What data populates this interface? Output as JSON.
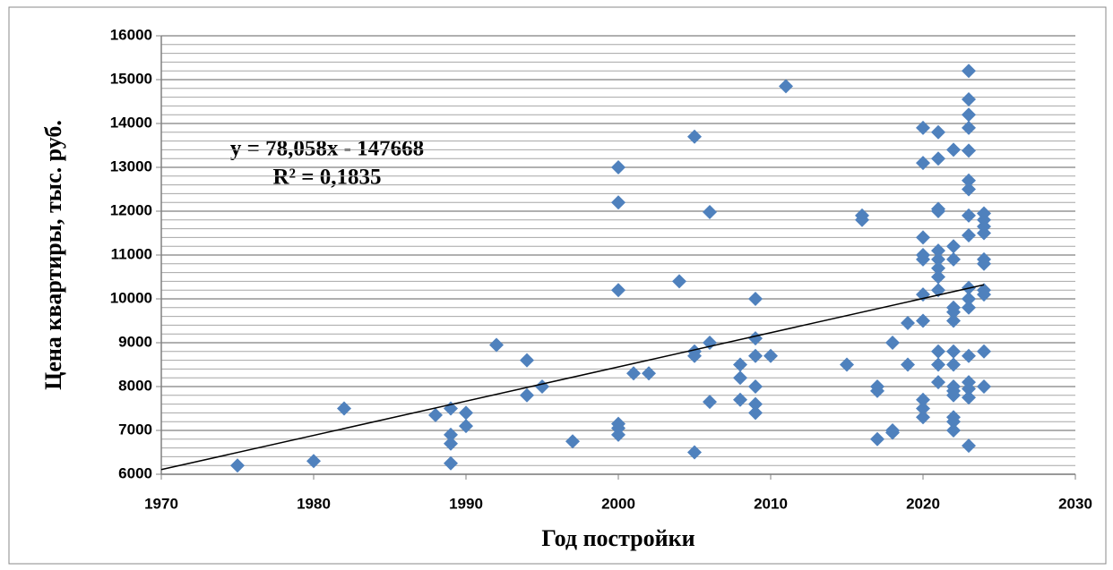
{
  "chart_data": {
    "type": "scatter",
    "xlabel": "Год постройки",
    "ylabel": "Цена квартиры, тыс. руб.",
    "color": "#4f81bd",
    "xlim": [
      1970,
      2030
    ],
    "xticks": [
      1970,
      1980,
      1990,
      2000,
      2010,
      2020,
      2030
    ],
    "ylim": [
      6000,
      16000
    ],
    "yticks": [
      6000,
      7000,
      8000,
      9000,
      10000,
      11000,
      12000,
      13000,
      14000,
      15000,
      16000
    ],
    "grid": true,
    "y_minor_step": 200,
    "trendline": {
      "slope": 78.058,
      "intercept": -147668,
      "x": [
        1970,
        2024
      ],
      "equation": "y = 78,058x - 147668",
      "r2": "R² = 0,1835"
    },
    "x": [
      1975,
      1980,
      1982,
      1988,
      1989,
      1989,
      1989,
      1989,
      1990,
      1990,
      1992,
      1994,
      1994,
      1995,
      1997,
      2000,
      2000,
      2000,
      2000,
      2000,
      2000,
      2001,
      2002,
      2004,
      2005,
      2005,
      2005,
      2005,
      2006,
      2006,
      2006,
      2008,
      2008,
      2008,
      2009,
      2009,
      2009,
      2009,
      2009,
      2009,
      2010,
      2011,
      2015,
      2016,
      2016,
      2017,
      2017,
      2017,
      2018,
      2018,
      2018,
      2019,
      2019,
      2020,
      2020,
      2020,
      2020,
      2020,
      2020,
      2020,
      2020,
      2020,
      2020,
      2021,
      2021,
      2021,
      2021,
      2021,
      2021,
      2021,
      2021,
      2021,
      2021,
      2021,
      2021,
      2022,
      2022,
      2022,
      2022,
      2022,
      2022,
      2022,
      2022,
      2022,
      2022,
      2022,
      2022,
      2022,
      2022,
      2023,
      2023,
      2023,
      2023,
      2023,
      2023,
      2023,
      2023,
      2023,
      2023,
      2023,
      2023,
      2023,
      2023,
      2023,
      2023,
      2023,
      2024,
      2024,
      2024,
      2024,
      2024,
      2024,
      2024,
      2024,
      2024,
      2024
    ],
    "values": [
      6200,
      6300,
      7500,
      7350,
      7500,
      6900,
      6700,
      6250,
      7400,
      7100,
      8950,
      8600,
      7800,
      8000,
      6750,
      13000,
      12200,
      10200,
      7150,
      7050,
      6900,
      8300,
      8300,
      10400,
      13700,
      8800,
      8700,
      6500,
      11980,
      9000,
      7650,
      8500,
      8200,
      7700,
      10000,
      9100,
      8700,
      8000,
      7600,
      7400,
      8700,
      14850,
      8500,
      11900,
      11800,
      8000,
      7900,
      6800,
      9000,
      7000,
      6950,
      9450,
      8500,
      13900,
      13100,
      11400,
      11000,
      10900,
      10100,
      9500,
      7700,
      7500,
      7300,
      13800,
      13200,
      12050,
      12000,
      11100,
      10900,
      10700,
      10500,
      10200,
      8800,
      8500,
      8100,
      13400,
      11200,
      10900,
      9800,
      9700,
      9500,
      8800,
      8500,
      8000,
      7900,
      7800,
      7300,
      7200,
      7000,
      15200,
      14550,
      14200,
      13900,
      13380,
      12700,
      12500,
      11900,
      11450,
      10250,
      10000,
      9800,
      8700,
      8100,
      7950,
      7750,
      6650,
      11950,
      11800,
      11650,
      11500,
      10900,
      10800,
      10200,
      10100,
      8800,
      8000
    ]
  }
}
